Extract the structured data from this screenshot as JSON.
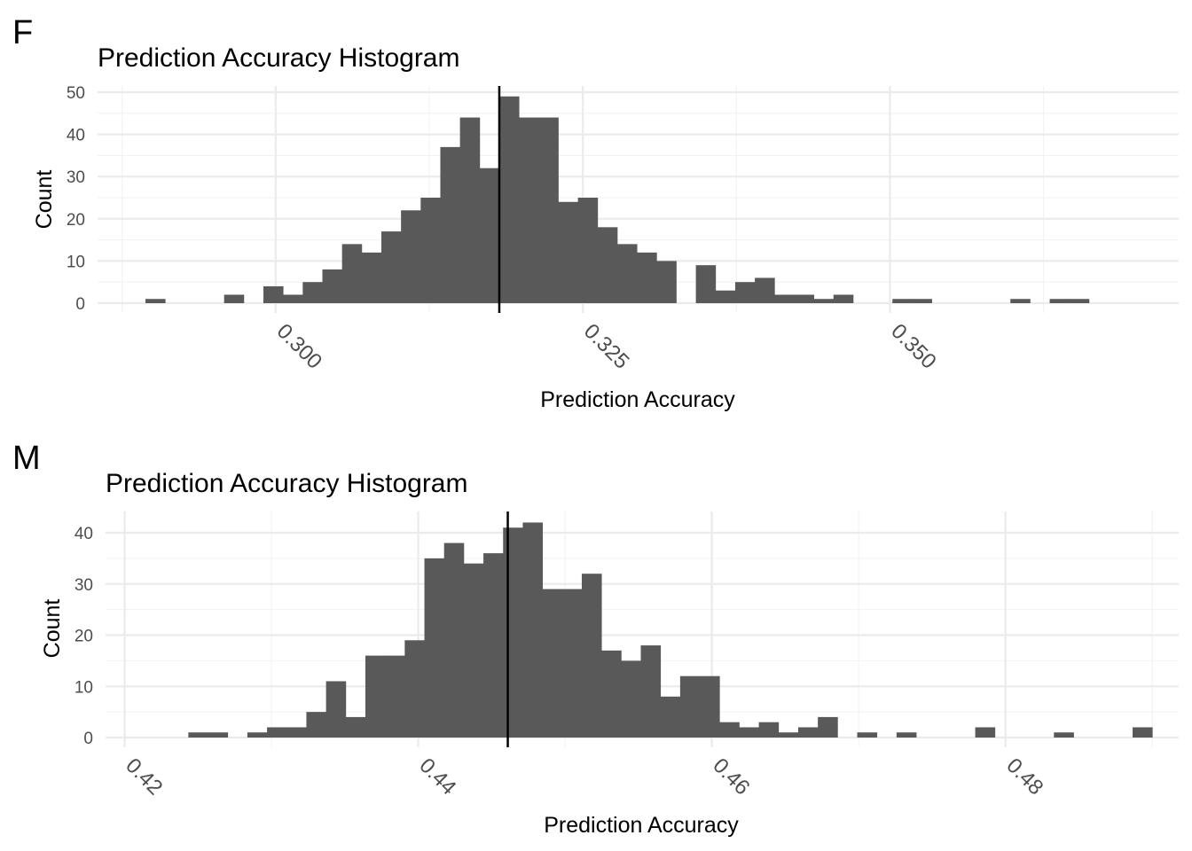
{
  "chart_data": [
    {
      "panel": "F",
      "type": "bar",
      "title": "Prediction Accuracy Histogram",
      "xlabel": "Prediction Accuracy",
      "ylabel": "Count",
      "xlim": [
        0.2855,
        0.3735
      ],
      "ylim": [
        0,
        50
      ],
      "x_ticks": [
        0.3,
        0.325,
        0.35
      ],
      "x_tick_labels": [
        "0.300",
        "0.325",
        "0.350"
      ],
      "x_minor_ticks": [
        0.2875,
        0.3125,
        0.3375,
        0.3625
      ],
      "y_ticks": [
        0,
        10,
        20,
        30,
        40,
        50
      ],
      "y_minor_ticks": [
        5,
        15,
        25,
        35,
        45
      ],
      "bin_width": 0.0016,
      "bins": [
        {
          "x0": 0.2894,
          "count": 1
        },
        {
          "x0": 0.2974,
          "count": 0
        },
        {
          "x0": 0.2958,
          "count": 2
        },
        {
          "x0": 0.299,
          "count": 4
        },
        {
          "x0": 0.3006,
          "count": 2
        },
        {
          "x0": 0.3022,
          "count": 5
        },
        {
          "x0": 0.3038,
          "count": 8
        },
        {
          "x0": 0.3054,
          "count": 14
        },
        {
          "x0": 0.307,
          "count": 12
        },
        {
          "x0": 0.3086,
          "count": 17
        },
        {
          "x0": 0.3102,
          "count": 22
        },
        {
          "x0": 0.3118,
          "count": 25
        },
        {
          "x0": 0.3134,
          "count": 37
        },
        {
          "x0": 0.315,
          "count": 44
        },
        {
          "x0": 0.3166,
          "count": 32
        },
        {
          "x0": 0.3182,
          "count": 49
        },
        {
          "x0": 0.3198,
          "count": 44
        },
        {
          "x0": 0.3214,
          "count": 44
        },
        {
          "x0": 0.323,
          "count": 24
        },
        {
          "x0": 0.3246,
          "count": 25
        },
        {
          "x0": 0.3262,
          "count": 18
        },
        {
          "x0": 0.3278,
          "count": 14
        },
        {
          "x0": 0.3294,
          "count": 12
        },
        {
          "x0": 0.331,
          "count": 10
        },
        {
          "x0": 0.3342,
          "count": 9
        },
        {
          "x0": 0.3358,
          "count": 3
        },
        {
          "x0": 0.3374,
          "count": 5
        },
        {
          "x0": 0.339,
          "count": 6
        },
        {
          "x0": 0.3406,
          "count": 2
        },
        {
          "x0": 0.3422,
          "count": 2
        },
        {
          "x0": 0.3438,
          "count": 1
        },
        {
          "x0": 0.3454,
          "count": 2
        },
        {
          "x0": 0.3502,
          "count": 1
        },
        {
          "x0": 0.3518,
          "count": 1
        },
        {
          "x0": 0.3598,
          "count": 1
        },
        {
          "x0": 0.363,
          "count": 1
        },
        {
          "x0": 0.3646,
          "count": 1
        }
      ],
      "reference_line_x": 0.3182
    },
    {
      "panel": "M",
      "type": "bar",
      "title": "Prediction Accuracy Histogram",
      "xlabel": "Prediction Accuracy",
      "ylabel": "Count",
      "xlim": [
        0.4187,
        0.4918
      ],
      "ylim": [
        0,
        40
      ],
      "x_ticks": [
        0.42,
        0.44,
        0.46,
        0.48
      ],
      "x_tick_labels": [
        "0.42",
        "0.44",
        "0.46",
        "0.48"
      ],
      "x_minor_ticks": [
        0.43,
        0.45,
        0.47,
        0.49
      ],
      "y_ticks": [
        0,
        10,
        20,
        30,
        40
      ],
      "y_minor_ticks": [
        5,
        15,
        25,
        35
      ],
      "bin_width": 0.00134,
      "bins": [
        {
          "x0": 0.42434,
          "count": 1
        },
        {
          "x0": 0.42568,
          "count": 1
        },
        {
          "x0": 0.42702,
          "count": 0
        },
        {
          "x0": 0.42836,
          "count": 1
        },
        {
          "x0": 0.4297,
          "count": 2
        },
        {
          "x0": 0.43104,
          "count": 2
        },
        {
          "x0": 0.43238,
          "count": 5
        },
        {
          "x0": 0.43372,
          "count": 11
        },
        {
          "x0": 0.43506,
          "count": 4
        },
        {
          "x0": 0.4364,
          "count": 16
        },
        {
          "x0": 0.43774,
          "count": 16
        },
        {
          "x0": 0.43908,
          "count": 19
        },
        {
          "x0": 0.44042,
          "count": 35
        },
        {
          "x0": 0.44176,
          "count": 38
        },
        {
          "x0": 0.4431,
          "count": 34
        },
        {
          "x0": 0.44444,
          "count": 36
        },
        {
          "x0": 0.44578,
          "count": 41
        },
        {
          "x0": 0.44712,
          "count": 42
        },
        {
          "x0": 0.44846,
          "count": 29
        },
        {
          "x0": 0.4498,
          "count": 29
        },
        {
          "x0": 0.45114,
          "count": 32
        },
        {
          "x0": 0.45248,
          "count": 17
        },
        {
          "x0": 0.45382,
          "count": 15
        },
        {
          "x0": 0.45516,
          "count": 18
        },
        {
          "x0": 0.4565,
          "count": 8
        },
        {
          "x0": 0.45784,
          "count": 12
        },
        {
          "x0": 0.45918,
          "count": 12
        },
        {
          "x0": 0.46052,
          "count": 3
        },
        {
          "x0": 0.46186,
          "count": 2
        },
        {
          "x0": 0.4632,
          "count": 3
        },
        {
          "x0": 0.46454,
          "count": 1
        },
        {
          "x0": 0.46588,
          "count": 2
        },
        {
          "x0": 0.46722,
          "count": 4
        },
        {
          "x0": 0.4699,
          "count": 1
        },
        {
          "x0": 0.47258,
          "count": 1
        },
        {
          "x0": 0.47794,
          "count": 2
        },
        {
          "x0": 0.4833,
          "count": 1
        },
        {
          "x0": 0.48866,
          "count": 2
        }
      ],
      "reference_line_x": 0.4461
    }
  ]
}
